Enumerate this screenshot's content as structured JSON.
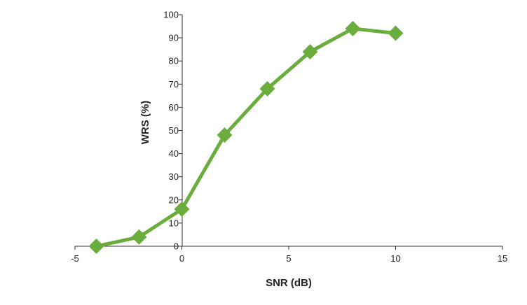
{
  "chart_data": {
    "type": "line",
    "xlabel": "SNR (dB)",
    "ylabel": "WRS (%)",
    "xlim": [
      -5,
      15
    ],
    "ylim": [
      0,
      100
    ],
    "xticks": [
      -5,
      0,
      5,
      10,
      15
    ],
    "yticks": [
      0,
      10,
      20,
      30,
      40,
      50,
      60,
      70,
      80,
      90,
      100
    ],
    "grid": false,
    "series": [
      {
        "x": [
          -4,
          -2,
          0,
          2,
          4,
          6,
          8,
          10
        ],
        "y": [
          0,
          4,
          16,
          48,
          68,
          84,
          94,
          92
        ],
        "color": "#6aad3c",
        "marker": "diamond"
      }
    ]
  }
}
